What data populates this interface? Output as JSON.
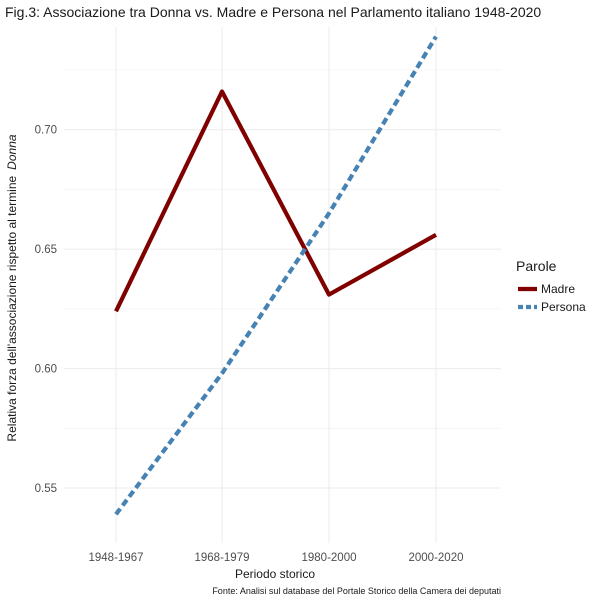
{
  "chart_data": {
    "type": "line",
    "title": "Fig.3: Associazione tra Donna vs. Madre e Persona nel Parlamento italiano 1948-2020",
    "xlabel": "Periodo storico",
    "ylabel_main": "Relativa forza dell'associazione rispetto al termine",
    "ylabel_italic": "Donna",
    "categories": [
      "1948-1967",
      "1968-1979",
      "1980-2000",
      "2000-2020"
    ],
    "ylim": [
      0.527,
      0.743
    ],
    "yticks": [
      0.55,
      0.6,
      0.65,
      0.7
    ],
    "ytick_labels": [
      "0.55",
      "0.60",
      "0.65",
      "0.70"
    ],
    "grid": true,
    "legend_title": "Parole",
    "legend_position": "right",
    "series": [
      {
        "name": "Madre",
        "values": [
          0.624,
          0.716,
          0.631,
          0.656
        ],
        "color": "#800000",
        "dash": "solid"
      },
      {
        "name": "Persona",
        "values": [
          0.539,
          0.598,
          0.665,
          0.739
        ],
        "color": "#4682B4",
        "dash": "dashed"
      }
    ],
    "caption": "Fonte: Analisi sul database del Portale Storico della Camera dei deputati"
  }
}
